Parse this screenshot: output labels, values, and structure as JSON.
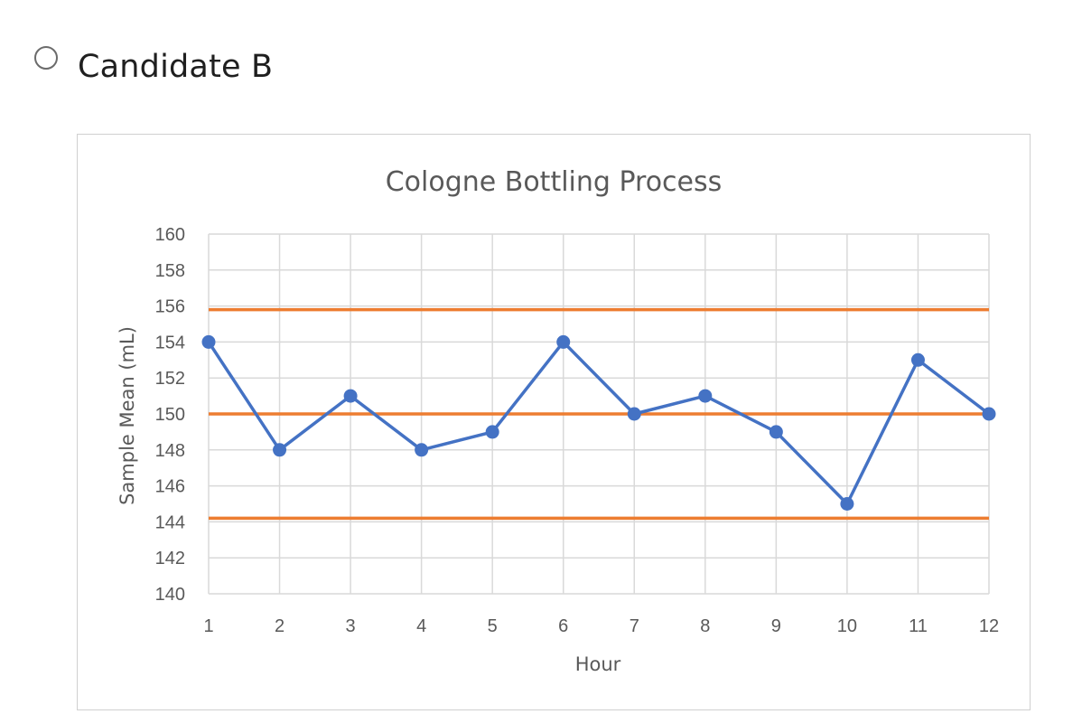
{
  "option": {
    "label": "Candidate B",
    "selected": false
  },
  "chart_data": {
    "type": "line",
    "title": "Cologne Bottling Process",
    "xlabel": "Hour",
    "ylabel": "Sample Mean (mL)",
    "x": [
      1,
      2,
      3,
      4,
      5,
      6,
      7,
      8,
      9,
      10,
      11,
      12
    ],
    "ylim": [
      140,
      160
    ],
    "yticks": [
      140,
      142,
      144,
      146,
      148,
      150,
      152,
      154,
      156,
      158,
      160
    ],
    "grid": true,
    "legend": "none",
    "series": [
      {
        "values": [
          154,
          148,
          151,
          148,
          149,
          154,
          150,
          151,
          149,
          145,
          153,
          150
        ],
        "color": "#4472c4",
        "marker": "circle"
      }
    ],
    "reference_lines": [
      {
        "value": 155.8,
        "color": "#ed7d31"
      },
      {
        "value": 150,
        "color": "#ed7d31"
      },
      {
        "value": 144.2,
        "color": "#ed7d31"
      }
    ]
  }
}
